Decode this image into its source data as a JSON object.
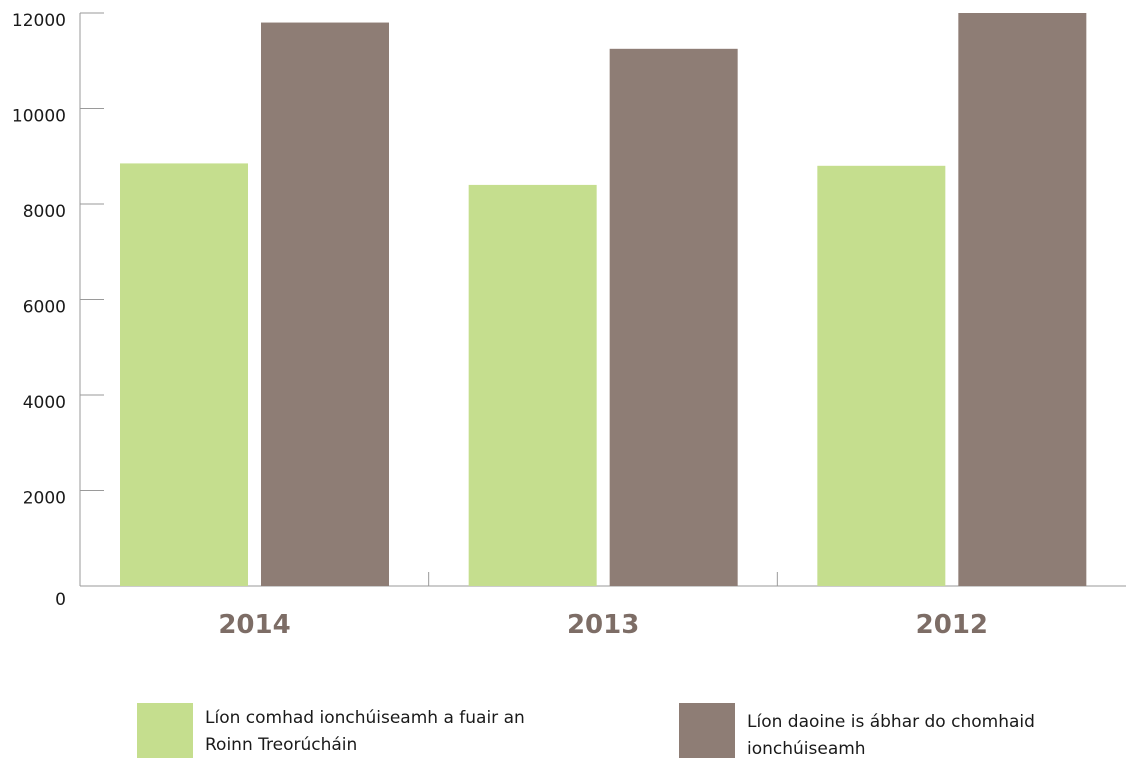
{
  "chart_data": {
    "type": "bar",
    "categories": [
      "2014",
      "2013",
      "2012"
    ],
    "series": [
      {
        "name": "Líon comhad ionchúiseamh a fuair an Roinn Treorúcháin",
        "values": [
          8850,
          8400,
          8800
        ],
        "color": "#c5de8e"
      },
      {
        "name": "Líon daoine is ábhar do chomhaid ionchúiseamh",
        "values": [
          11800,
          11250,
          12000
        ],
        "color": "#8e7d75"
      }
    ],
    "yticks": [
      "0",
      "2000",
      "4000",
      "6000",
      "8000",
      "10000",
      "12000"
    ],
    "ylim": [
      0,
      12000
    ],
    "title": "",
    "xlabel": "",
    "ylabel": "",
    "legend_position": "bottom",
    "grid": false
  },
  "legend": [
    {
      "line1": "Líon comhad ionchúiseamh a fuair an",
      "line2": "Roinn Treorúcháin"
    },
    {
      "line1": "Líon daoine is ábhar do chomhaid",
      "line2": "ionchúiseamh"
    }
  ]
}
